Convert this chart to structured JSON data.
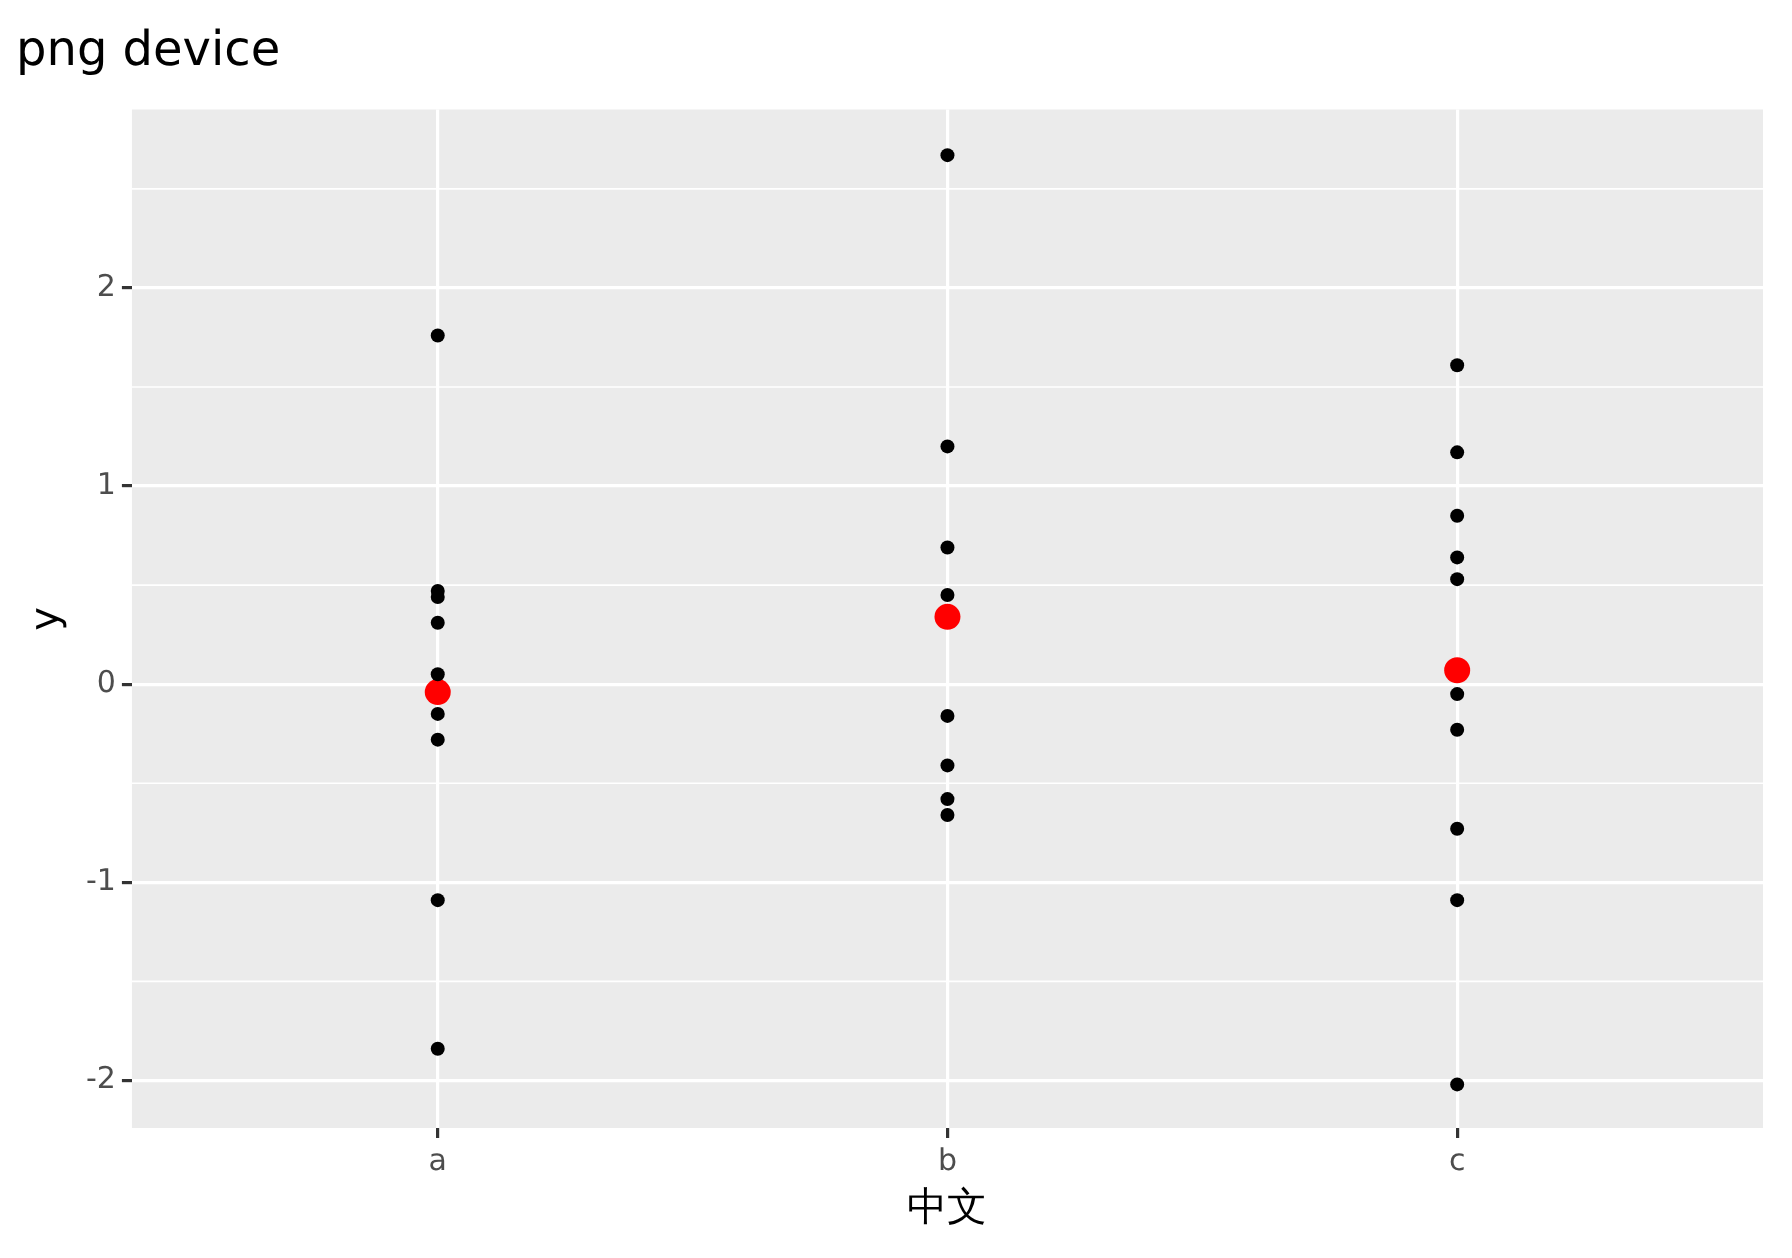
{
  "chart_data": {
    "type": "scatter",
    "title": "png device",
    "xlabel": "中文",
    "ylabel": "y",
    "categories": [
      "a",
      "b",
      "c"
    ],
    "series": [
      {
        "color": "#000000",
        "x": [
          "a",
          "a",
          "a",
          "a",
          "a",
          "a",
          "a",
          "a",
          "a",
          "b",
          "b",
          "b",
          "b",
          "b",
          "b",
          "b",
          "b",
          "c",
          "c",
          "c",
          "c",
          "c",
          "c",
          "c",
          "c",
          "c",
          "c"
        ],
        "values": [
          1.76,
          0.47,
          0.44,
          0.31,
          0.05,
          -0.15,
          -0.28,
          -1.09,
          -1.84,
          2.67,
          1.2,
          0.69,
          0.45,
          -0.16,
          -0.41,
          -0.58,
          -0.66,
          1.61,
          1.17,
          0.85,
          0.64,
          0.53,
          -0.05,
          -0.23,
          -0.73,
          -1.09,
          -2.02
        ]
      },
      {
        "color": "#ff0000",
        "x": [
          "a",
          "b",
          "c"
        ],
        "values": [
          -0.04,
          0.34,
          0.07
        ]
      }
    ],
    "ylim": [
      -2.24,
      2.9
    ],
    "yticks": [
      -2,
      -1,
      0,
      1,
      2
    ],
    "grid": true,
    "legend": false,
    "marker": "circle"
  }
}
